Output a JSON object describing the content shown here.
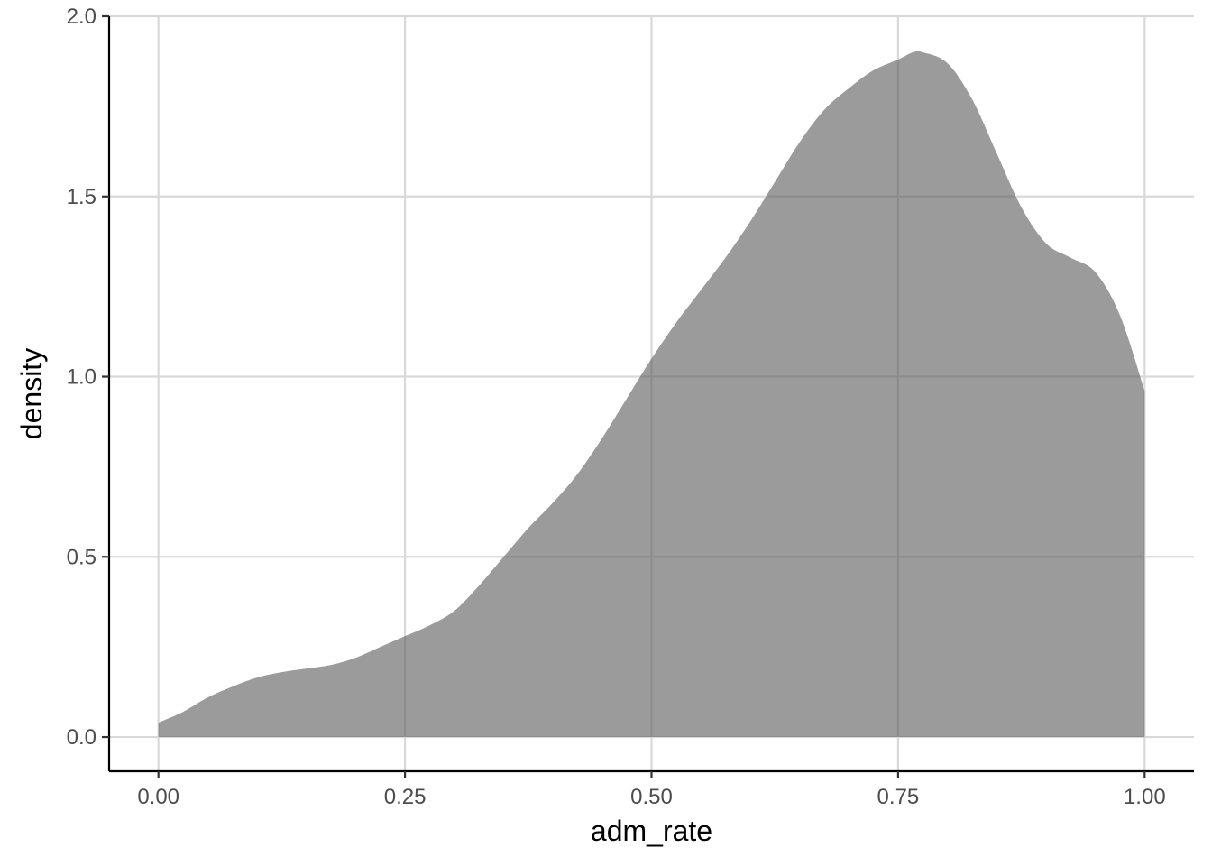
{
  "chart_data": {
    "type": "area",
    "title": "",
    "xlabel": "adm_rate",
    "ylabel": "density",
    "xlim": [
      -0.05,
      1.05
    ],
    "ylim": [
      -0.095,
      2.0
    ],
    "grid": true,
    "legend": "none",
    "fill_color": "#595959",
    "x_ticks": [
      {
        "value": 0,
        "label": "0.00"
      },
      {
        "value": 0.25,
        "label": "0.25"
      },
      {
        "value": 0.5,
        "label": "0.50"
      },
      {
        "value": 0.75,
        "label": "0.75"
      },
      {
        "value": 1,
        "label": "1.00"
      }
    ],
    "y_ticks": [
      {
        "value": 0,
        "label": "0.0"
      },
      {
        "value": 0.5,
        "label": "0.5"
      },
      {
        "value": 1,
        "label": "1.0"
      },
      {
        "value": 1.5,
        "label": "1.5"
      },
      {
        "value": 2,
        "label": "2.0"
      }
    ],
    "x": [
      0.0,
      0.025,
      0.05,
      0.075,
      0.1,
      0.125,
      0.15,
      0.175,
      0.2,
      0.225,
      0.25,
      0.275,
      0.3,
      0.325,
      0.35,
      0.375,
      0.4,
      0.425,
      0.45,
      0.475,
      0.5,
      0.525,
      0.55,
      0.575,
      0.6,
      0.625,
      0.65,
      0.675,
      0.7,
      0.725,
      0.75,
      0.765,
      0.775,
      0.8,
      0.825,
      0.85,
      0.875,
      0.9,
      0.925,
      0.95,
      0.975,
      1.0
    ],
    "y": [
      0.04,
      0.07,
      0.11,
      0.14,
      0.165,
      0.18,
      0.19,
      0.2,
      0.22,
      0.25,
      0.28,
      0.31,
      0.35,
      0.42,
      0.5,
      0.58,
      0.65,
      0.73,
      0.83,
      0.94,
      1.05,
      1.15,
      1.24,
      1.33,
      1.43,
      1.54,
      1.65,
      1.74,
      1.8,
      1.85,
      1.88,
      1.9,
      1.9,
      1.87,
      1.77,
      1.62,
      1.47,
      1.37,
      1.33,
      1.29,
      1.17,
      0.96
    ]
  }
}
